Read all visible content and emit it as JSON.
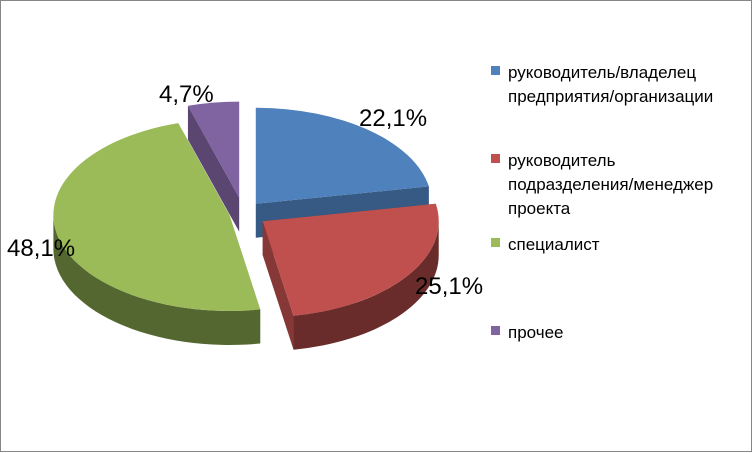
{
  "chart_data": {
    "type": "pie",
    "style": "3d-exploded",
    "title": "",
    "categories": [
      "руководитель/владелец\nпредприятия/организации",
      "руководитель\nподразделения/менеджер\nпроекта",
      "специалист",
      "прочее"
    ],
    "values": [
      22.1,
      25.1,
      48.1,
      4.7
    ],
    "value_labels": [
      "22,1%",
      "25,1%",
      "48,1%",
      "4,7%"
    ],
    "colors": [
      "#4F81BD",
      "#C0504D",
      "#9BBB59",
      "#8064A2"
    ],
    "legend_position": "right"
  }
}
